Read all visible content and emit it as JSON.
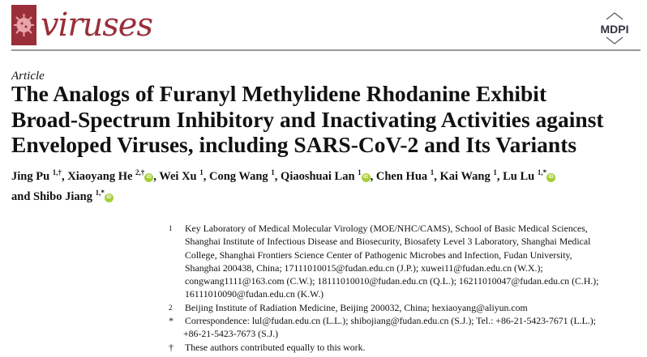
{
  "journal": {
    "name": "viruses",
    "publisher": "MDPI",
    "brand_color": "#9a2f3a"
  },
  "article_type": "Article",
  "title_lines": [
    "The Analogs of Furanyl Methylidene Rhodanine Exhibit",
    "Broad-Spectrum Inhibitory and Inactivating Activities against",
    "Enveloped Viruses, including SARS-CoV-2 and Its Variants"
  ],
  "authors": [
    {
      "name": "Jing Pu",
      "sup": "1,†",
      "orcid": false
    },
    {
      "name": "Xiaoyang He",
      "sup": "2,†",
      "orcid": true
    },
    {
      "name": "Wei Xu",
      "sup": "1",
      "orcid": false
    },
    {
      "name": "Cong Wang",
      "sup": "1",
      "orcid": false
    },
    {
      "name": "Qiaoshuai Lan",
      "sup": "1",
      "orcid": true
    },
    {
      "name": "Chen Hua",
      "sup": "1",
      "orcid": false
    },
    {
      "name": "Kai Wang",
      "sup": "1",
      "orcid": false
    },
    {
      "name": "Lu Lu",
      "sup": "1,*",
      "orcid": true
    },
    {
      "name": "Shibo Jiang",
      "sup": "1,*",
      "orcid": true
    }
  ],
  "and_label": "and",
  "orcid_label": "iD",
  "affiliations": [
    {
      "mark": "1",
      "lines": [
        "Key Laboratory of Medical Molecular Virology (MOE/NHC/CAMS), School of Basic Medical Sciences,",
        "Shanghai Institute of Infectious Disease and Biosecurity, Biosafety Level 3 Laboratory, Shanghai Medical",
        "College, Shanghai Frontiers Science Center of Pathogenic Microbes and Infection, Fudan University,",
        "Shanghai 200438, China; 17111010015@fudan.edu.cn (J.P.); xuwei11@fudan.edu.cn (W.X.);",
        "congwang1111@163.com (C.W.); 18111010010@fudan.edu.cn (Q.L.); 16211010047@fudan.edu.cn (C.H.);",
        "16111010090@fudan.edu.cn (K.W.)"
      ]
    },
    {
      "mark": "2",
      "lines": [
        "Beijing Institute of Radiation Medicine, Beijing 200032, China; hexiaoyang@aliyun.com"
      ]
    },
    {
      "mark": "*",
      "lines": [
        "Correspondence: lul@fudan.edu.cn (L.L.); shibojiang@fudan.edu.cn (S.J.); Tel.: +86-21-5423-7671 (L.L.);",
        "+86-21-5423-7673 (S.J.)"
      ]
    },
    {
      "mark": "†",
      "lines": [
        "These authors contributed equally to this work."
      ]
    }
  ]
}
